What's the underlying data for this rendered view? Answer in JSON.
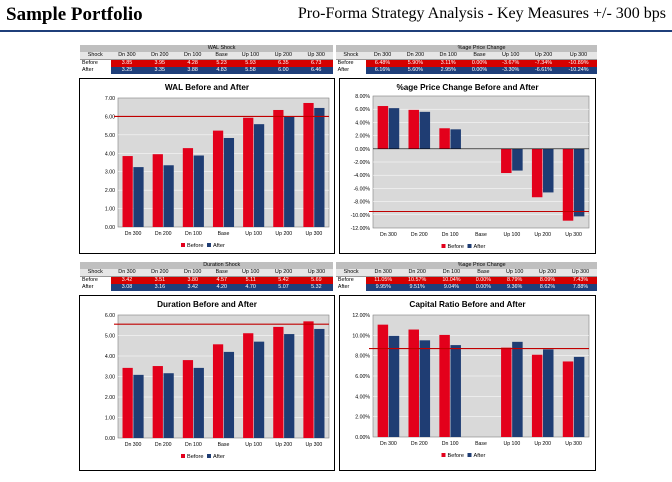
{
  "header": {
    "title": "Sample Portfolio",
    "subtitle": "Pro-Forma Strategy Analysis - Key Measures +/- 300 bps"
  },
  "tables": [
    {
      "left": {
        "group": "WAL Shock",
        "cols": [
          "Shock",
          "Dn 300",
          "Dn 200",
          "Dn 100",
          "Base",
          "Up 100",
          "Up 200",
          "Up 300"
        ],
        "rows": [
          {
            "label": "Before",
            "values": [
              "3.85",
              "3.95",
              "4.28",
              "5.23",
              "5.93",
              "6.35",
              "6.73"
            ]
          },
          {
            "label": "After",
            "values": [
              "3.25",
              "3.35",
              "3.88",
              "4.83",
              "5.58",
              "6.00",
              "6.46"
            ]
          }
        ]
      },
      "right": {
        "group": "%age Price Change",
        "cols": [
          "Shock",
          "Dn 300",
          "Dn 200",
          "Dn 100",
          "Base",
          "Up 100",
          "Up 200",
          "Up 300"
        ],
        "rows": [
          {
            "label": "Before",
            "values": [
              "6.48%",
              "5.90%",
              "3.11%",
              "0.00%",
              "-3.67%",
              "-7.34%",
              "-10.89%"
            ]
          },
          {
            "label": "After",
            "values": [
              "6.16%",
              "5.60%",
              "2.95%",
              "0.00%",
              "-3.30%",
              "-6.61%",
              "-10.24%"
            ]
          }
        ]
      }
    },
    {
      "left": {
        "group": "Duration Shock",
        "cols": [
          "Shock",
          "Dn 300",
          "Dn 200",
          "Dn 100",
          "Base",
          "Up 100",
          "Up 200",
          "Up 300"
        ],
        "rows": [
          {
            "label": "Before",
            "values": [
              "3.42",
              "3.51",
              "3.80",
              "4.57",
              "5.11",
              "5.42",
              "5.69"
            ]
          },
          {
            "label": "After",
            "values": [
              "3.08",
              "3.16",
              "3.42",
              "4.20",
              "4.70",
              "5.07",
              "5.32"
            ]
          }
        ]
      },
      "right": {
        "group": "%age Price Change",
        "cols": [
          "Shock",
          "Dn 300",
          "Dn 200",
          "Dn 100",
          "Base",
          "Up 100",
          "Up 200",
          "Up 300"
        ],
        "rows": [
          {
            "label": "Before",
            "values": [
              "11.05%",
              "10.57%",
              "10.04%",
              "0.00%",
              "8.79%",
              "8.09%",
              "7.43%"
            ]
          },
          {
            "label": "After",
            "values": [
              "9.95%",
              "9.51%",
              "9.04%",
              "0.00%",
              "9.36%",
              "8.62%",
              "7.88%"
            ]
          }
        ]
      }
    }
  ],
  "colors": {
    "before": "#e3001b",
    "after": "#1f3d73",
    "plot_bg": "#d9d9d9",
    "ref_line": "#c00000"
  },
  "chart_data": [
    {
      "type": "bar",
      "title": "WAL Before and After",
      "categories": [
        "Dn 300",
        "Dn 200",
        "Dn 100",
        "Base",
        "Up 100",
        "Up 200",
        "Up 300"
      ],
      "series": [
        {
          "name": "Before",
          "values": [
            3.85,
            3.95,
            4.28,
            5.23,
            5.93,
            6.35,
            6.73
          ]
        },
        {
          "name": "After",
          "values": [
            3.25,
            3.35,
            3.88,
            4.83,
            5.58,
            6.0,
            6.46
          ]
        }
      ],
      "ylim": [
        0,
        7
      ],
      "yticks": [
        0,
        1,
        2,
        3,
        4,
        5,
        6,
        7
      ],
      "ytick_labels": [
        "0.00",
        "1.00",
        "2.00",
        "3.00",
        "4.00",
        "5.00",
        "6.00",
        "7.00"
      ],
      "ref_line": 6.0,
      "legend": "bottom"
    },
    {
      "type": "bar",
      "title": "%age Price Change Before and After",
      "categories": [
        "Dn 300",
        "Dn 200",
        "Dn 100",
        "Base",
        "Up 100",
        "Up 200",
        "Up 300"
      ],
      "series": [
        {
          "name": "Before",
          "values": [
            6.48,
            5.9,
            3.11,
            0.0,
            -3.67,
            -7.34,
            -10.89
          ]
        },
        {
          "name": "After",
          "values": [
            6.16,
            5.6,
            2.95,
            0.0,
            -3.3,
            -6.61,
            -10.24
          ]
        }
      ],
      "ylim": [
        -12,
        8
      ],
      "yticks": [
        -12,
        -10,
        -8,
        -6,
        -4,
        -2,
        0,
        2,
        4,
        6,
        8
      ],
      "ytick_labels": [
        "-12.00%",
        "-10.00%",
        "-8.00%",
        "-6.00%",
        "-4.00%",
        "-2.00%",
        "0.00%",
        "2.00%",
        "4.00%",
        "6.00%",
        "8.00%"
      ],
      "ref_line": -9.5,
      "legend": "bottom"
    },
    {
      "type": "bar",
      "title": "Duration Before and After",
      "categories": [
        "Dn 300",
        "Dn 200",
        "Dn 100",
        "Base",
        "Up 100",
        "Up 200",
        "Up 300"
      ],
      "series": [
        {
          "name": "Before",
          "values": [
            3.42,
            3.51,
            3.8,
            4.57,
            5.11,
            5.42,
            5.69
          ]
        },
        {
          "name": "After",
          "values": [
            3.08,
            3.16,
            3.42,
            4.2,
            4.7,
            5.07,
            5.32
          ]
        }
      ],
      "ylim": [
        0,
        6
      ],
      "yticks": [
        0,
        1,
        2,
        3,
        4,
        5,
        6
      ],
      "ytick_labels": [
        "0.00",
        "1.00",
        "2.00",
        "3.00",
        "4.00",
        "5.00",
        "6.00"
      ],
      "ref_line": 5.55,
      "legend": "bottom"
    },
    {
      "type": "bar",
      "title": "Capital Ratio Before and After",
      "categories": [
        "Dn 300",
        "Dn 200",
        "Dn 100",
        "Base",
        "Up 100",
        "Up 200",
        "Up 300"
      ],
      "series": [
        {
          "name": "Before",
          "values": [
            11.05,
            10.57,
            10.04,
            0.0,
            8.79,
            8.09,
            7.43
          ]
        },
        {
          "name": "After",
          "values": [
            9.95,
            9.51,
            9.04,
            0.0,
            9.36,
            8.62,
            7.88
          ]
        }
      ],
      "ylim": [
        0,
        12
      ],
      "yticks": [
        0,
        2,
        4,
        6,
        8,
        10,
        12
      ],
      "ytick_labels": [
        "0.00%",
        "2.00%",
        "4.00%",
        "6.00%",
        "8.00%",
        "10.00%",
        "12.00%"
      ],
      "ref_line": 8.7,
      "legend": "bottom"
    }
  ]
}
